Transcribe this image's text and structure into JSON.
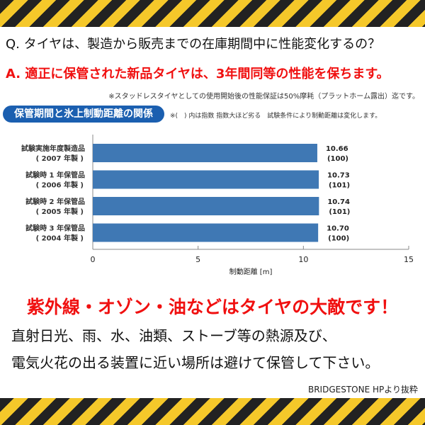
{
  "question": "Q. タイヤは、製造から販売までの在庫期間中に性能変化するの？",
  "answer": "A. 適正に保管された新品タイヤは、3年間同等の性能を保ちます。",
  "answer_note": "※スタッドレスタイヤとしての使用開始後の性能保証は50%摩耗（プラットホーム露出）迄です。",
  "chart_note": "※(　) 内は指数 指数大ほど劣る　試験条件により制動距離は変化します。",
  "chart_data": {
    "type": "bar",
    "orientation": "horizontal",
    "title": "保管期間と氷上制動距離の関係",
    "categories": [
      [
        "試験実施年度製造品",
        "( 2007 年製 )"
      ],
      [
        "試験時 1 年保管品",
        "( 2006 年製 )"
      ],
      [
        "試験時 2 年保管品",
        "( 2005 年製 )"
      ],
      [
        "試験時 3 年保管品",
        "( 2004 年製 )"
      ]
    ],
    "values": [
      10.66,
      10.73,
      10.74,
      10.7
    ],
    "value_labels": [
      "10.66",
      "10.73",
      "10.74",
      "10.70"
    ],
    "index_labels": [
      "(100)",
      "(101)",
      "(101)",
      "(100)"
    ],
    "xlabel": "制動距離 [m]",
    "xlim": [
      0,
      15
    ],
    "xticks": [
      "0",
      "5",
      "10",
      "15"
    ],
    "bar_color": "#3f78b4",
    "grid": false
  },
  "warning": "紫外線・オゾン・油などはタイヤの大敵です！",
  "advice": [
    "直射日光、雨、水、油類、ストーブ等の熱源及び、",
    "電気火花の出る装置に近い場所は避けて保管して下さい。"
  ],
  "credit": "BRIDGESTONE HPより抜粋"
}
